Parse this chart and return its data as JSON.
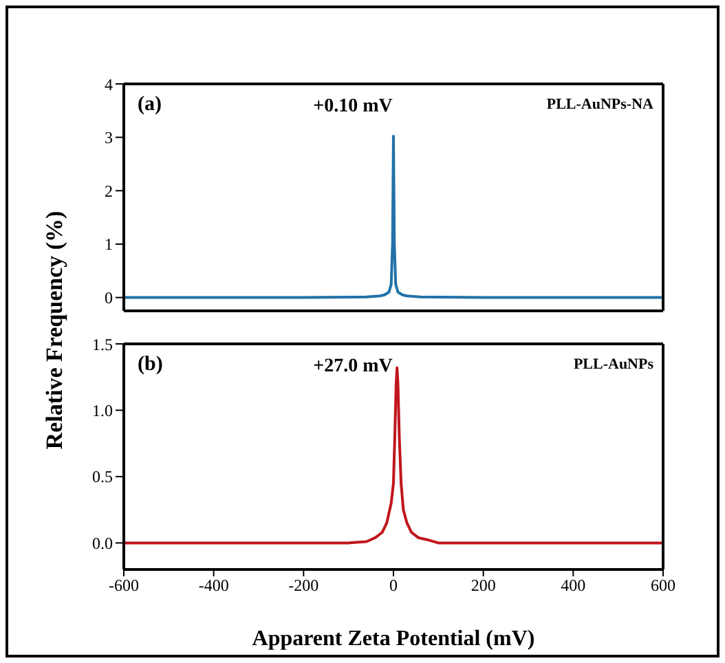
{
  "chart_data": [
    {
      "type": "line",
      "ylabel": "Relative Frequency (%)",
      "annotations": [
        "(a)",
        "+0.10 mV",
        "PLL-AuNPs-NA"
      ],
      "xlim": [
        -600,
        600
      ],
      "ylim": [
        -0.25,
        4
      ],
      "yticks": [
        0,
        1,
        2,
        3,
        4
      ],
      "tick_labels": "y",
      "marker": "none",
      "line_style": "solid",
      "series": [
        {
          "color": "#2272a8",
          "x": [
            -600,
            -200,
            -60,
            -30,
            -20,
            -10,
            -5,
            -2,
            0,
            2,
            5,
            10,
            20,
            30,
            60,
            200,
            600
          ],
          "values": [
            0,
            0,
            0.01,
            0.03,
            0.05,
            0.1,
            0.25,
            1.0,
            3.02,
            1.0,
            0.25,
            0.1,
            0.05,
            0.03,
            0.01,
            0,
            0
          ]
        }
      ]
    },
    {
      "type": "line",
      "xlabel": "Apparent Zeta Potential (mV)",
      "annotations": [
        "(b)",
        "+27.0 mV",
        "PLL-AuNPs"
      ],
      "xlim": [
        -600,
        600
      ],
      "xticks": [
        -600,
        -400,
        -200,
        0,
        200,
        400,
        600
      ],
      "ylim": [
        -0.2,
        1.5
      ],
      "yticks": [
        {
          "value": 0,
          "label": "0.0"
        },
        {
          "value": 0.5,
          "label": "0.5"
        },
        {
          "value": 1,
          "label": "1.0"
        },
        {
          "value": 1.5,
          "label": "1.5"
        }
      ],
      "marker": "none",
      "line_style": "solid",
      "series": [
        {
          "color": "#c0161d",
          "x": [
            -600,
            -100,
            -60,
            -40,
            -25,
            -15,
            -5,
            0,
            3,
            6,
            8,
            10,
            13,
            17,
            22,
            30,
            40,
            55,
            80,
            100,
            600
          ],
          "values": [
            0,
            0,
            0.01,
            0.04,
            0.08,
            0.15,
            0.3,
            0.45,
            0.8,
            1.2,
            1.32,
            1.2,
            0.8,
            0.45,
            0.25,
            0.15,
            0.08,
            0.04,
            0.02,
            0,
            0
          ]
        }
      ]
    }
  ]
}
